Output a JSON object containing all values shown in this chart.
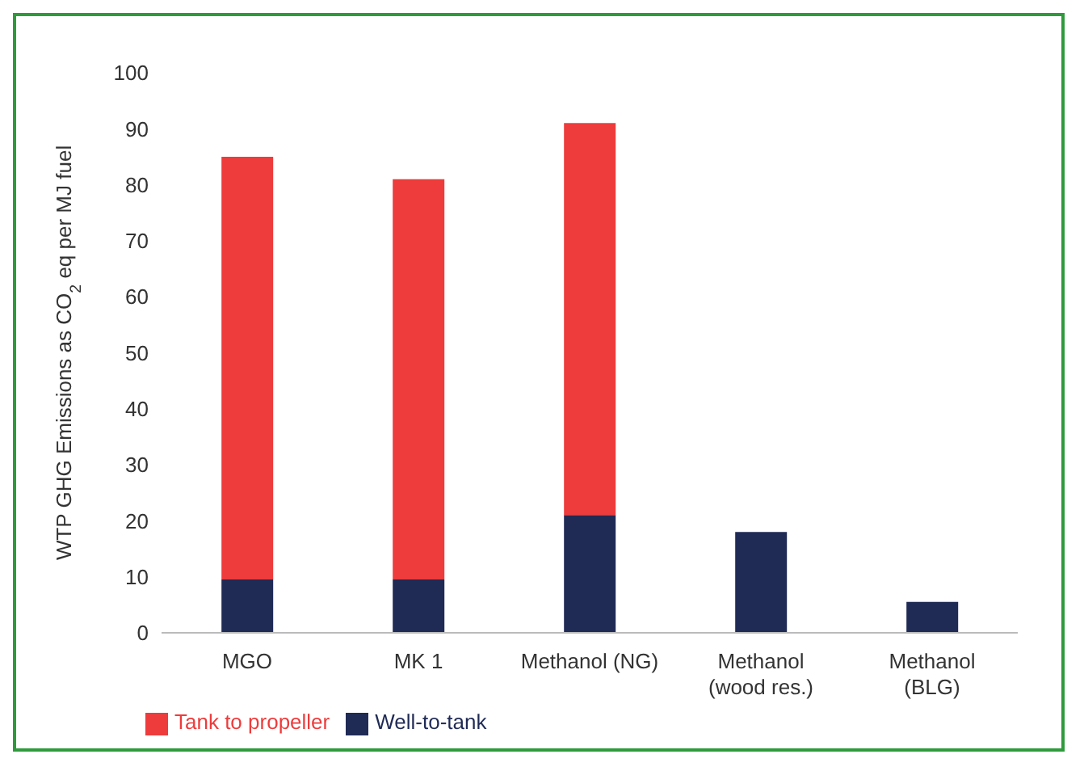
{
  "chart_data": {
    "type": "bar",
    "stacked": true,
    "ylabel": "WTP GHG Emissions as CO$_{2}$ eq per MJ fuel",
    "categories": [
      "MGO",
      "MK 1",
      "Methanol (NG)",
      "Methanol (wood res.)",
      "Methanol (BLG)"
    ],
    "series": [
      {
        "name": "Well-to-tank",
        "color": "#1f2a55",
        "values": [
          9.5,
          9.5,
          21,
          18,
          5.5
        ]
      },
      {
        "name": "Tank to propeller",
        "color": "#ee3b3b",
        "values": [
          75.5,
          71.5,
          70,
          null,
          null
        ]
      }
    ],
    "ylim": [
      0,
      100
    ],
    "yticks": [
      0,
      10,
      20,
      30,
      40,
      50,
      60,
      70,
      80,
      90,
      100
    ],
    "grid": false,
    "legend": "bottom left"
  }
}
